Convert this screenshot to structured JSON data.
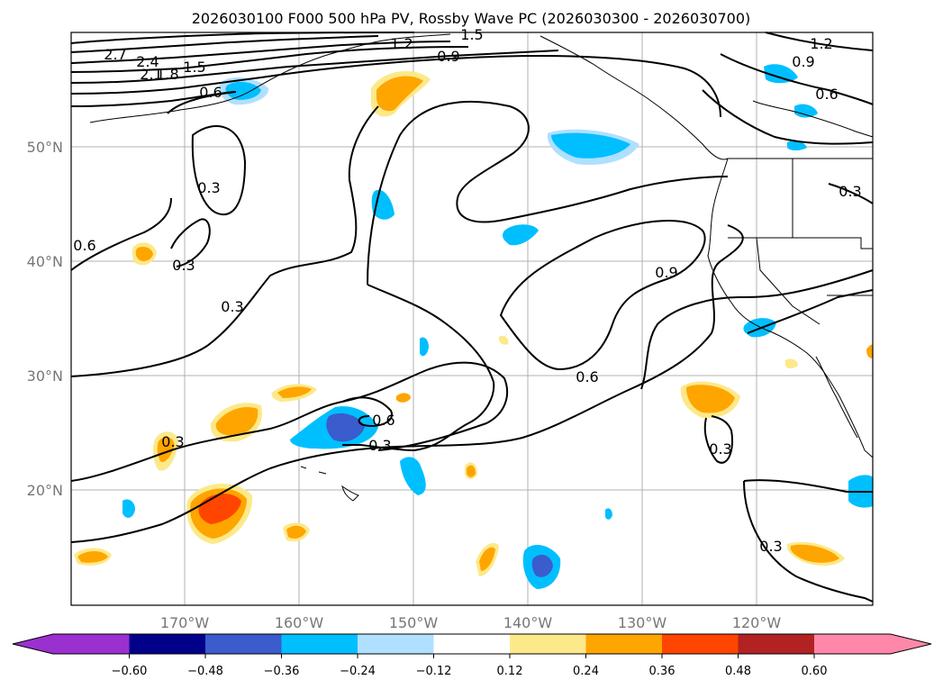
{
  "title": "2026030100 F000 500 hPa PV, Rossby Wave PC (2026030300 - 2026030700)",
  "map": {
    "lat_labels": [
      "50°N",
      "40°N",
      "30°N",
      "20°N"
    ],
    "lon_labels": [
      "170°W",
      "160°W",
      "150°W",
      "140°W",
      "130°W",
      "120°W"
    ],
    "contour_labels": [
      "2.7",
      "2.4",
      "2.1",
      "1.8",
      "1.5",
      "1.2",
      "1.5",
      "0.9",
      "0.6",
      "1.2",
      "0.9",
      "0.6",
      "0.3",
      "0.3",
      "0.6",
      "0.3",
      "0.9",
      "0.3",
      "0.6",
      "0.6",
      "0.3",
      "0.3",
      "0.3",
      "0.3"
    ]
  },
  "colorbar": {
    "ticks": [
      "−0.60",
      "−0.48",
      "−0.36",
      "−0.24",
      "−0.12",
      "0.12",
      "0.24",
      "0.36",
      "0.48",
      "0.60"
    ],
    "colors": [
      "#9b30d0",
      "#00008b",
      "#3a5ccc",
      "#00bfff",
      "#b0e0ff",
      "#ffffff",
      "#fce98a",
      "#ffa500",
      "#ff4500",
      "#b22222",
      "#ff88aa",
      "#ff88aa"
    ]
  }
}
